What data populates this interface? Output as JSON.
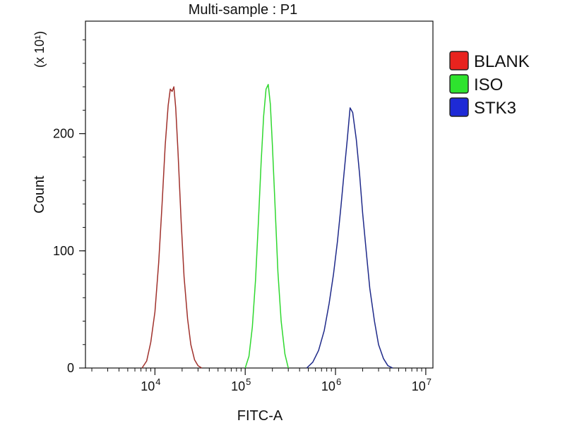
{
  "chart_data": {
    "type": "line",
    "title": "Multi-sample : P1",
    "xlabel": "FITC-A",
    "ylabel": "Count",
    "y_multiplier_label": "(x 10¹)",
    "x_scale": "log",
    "xlim": [
      1700,
      12000000
    ],
    "ylim": [
      0,
      296
    ],
    "x_ticks": [
      {
        "value": 10000,
        "base": "10",
        "exp": "4"
      },
      {
        "value": 100000,
        "base": "10",
        "exp": "5"
      },
      {
        "value": 1000000,
        "base": "10",
        "exp": "6"
      },
      {
        "value": 10000000,
        "base": "10",
        "exp": "7"
      }
    ],
    "y_ticks": [
      {
        "value": 0,
        "label": "0"
      },
      {
        "value": 100,
        "label": "100"
      },
      {
        "value": 200,
        "label": "200"
      }
    ],
    "y_minor_step": 20,
    "grid": false,
    "legend_position": "top-right",
    "series": [
      {
        "name": "BLANK",
        "color": "#a0312c",
        "swatch": "#e8231e",
        "x": [
          7200,
          8100,
          9000,
          10000,
          11000,
          12000,
          13000,
          14000,
          14800,
          15500,
          16200,
          17000,
          18000,
          19500,
          21000,
          23000,
          25000,
          27500,
          30000,
          33000
        ],
        "y": [
          0,
          6,
          22,
          48,
          90,
          140,
          190,
          224,
          238,
          236,
          240,
          222,
          185,
          125,
          78,
          42,
          20,
          7,
          2,
          0
        ]
      },
      {
        "name": "ISO",
        "color": "#2fd82f",
        "swatch": "#2ee32e",
        "x": [
          100000,
          110000,
          120000,
          130000,
          140000,
          150000,
          160000,
          170000,
          180000,
          190000,
          200000,
          215000,
          230000,
          250000,
          275000,
          300000
        ],
        "y": [
          0,
          10,
          35,
          75,
          125,
          175,
          215,
          238,
          242,
          225,
          190,
          135,
          82,
          40,
          12,
          0
        ]
      },
      {
        "name": "STK3",
        "color": "#1f2a8a",
        "swatch": "#1e2ad6",
        "x": [
          480000,
          560000,
          650000,
          750000,
          850000,
          950000,
          1050000,
          1150000,
          1250000,
          1350000,
          1450000,
          1550000,
          1700000,
          1850000,
          2000000,
          2200000,
          2400000,
          2700000,
          3000000,
          3400000,
          3800000,
          4300000
        ],
        "y": [
          0,
          5,
          15,
          32,
          55,
          80,
          108,
          138,
          168,
          195,
          222,
          218,
          195,
          165,
          132,
          98,
          68,
          40,
          20,
          8,
          2,
          0
        ]
      }
    ]
  }
}
